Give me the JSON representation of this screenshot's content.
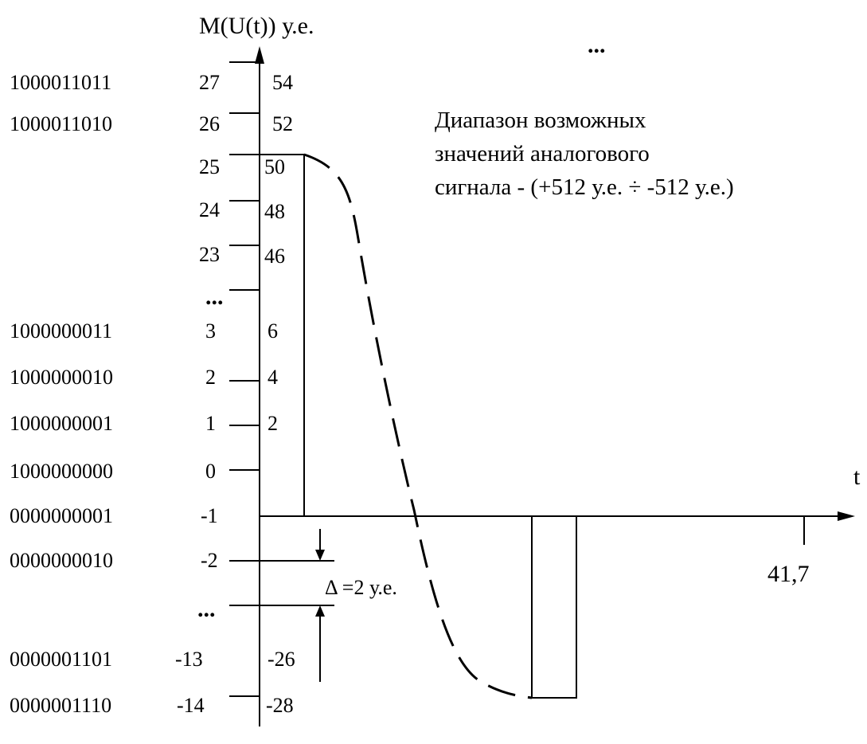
{
  "axis": {
    "y_label": "M(U(t)) у.е.",
    "x_label": "t",
    "x_tick": "41,7"
  },
  "levels": [
    {
      "code": "1000011011",
      "index": "27",
      "value": "54"
    },
    {
      "code": "1000011010",
      "index": "26",
      "value": "52"
    },
    {
      "code": "",
      "index": "25",
      "value": "50"
    },
    {
      "code": "",
      "index": "24",
      "value": "48"
    },
    {
      "code": "",
      "index": "23",
      "value": "46"
    },
    {
      "code": "1000000011",
      "index": "3",
      "value": "6"
    },
    {
      "code": "1000000010",
      "index": "2",
      "value": "4"
    },
    {
      "code": "1000000001",
      "index": "1",
      "value": "2"
    },
    {
      "code": "1000000000",
      "index": "0",
      "value": ""
    },
    {
      "code": "0000000001",
      "index": "-1",
      "value": ""
    },
    {
      "code": "0000000010",
      "index": "-2",
      "value": ""
    },
    {
      "code": "0000001101",
      "index": "-13",
      "value": "-26"
    },
    {
      "code": "0000001110",
      "index": "-14",
      "value": "-28"
    }
  ],
  "ellipsis": "...",
  "annotation": {
    "line1": "Диапазон возможных",
    "line2": "значений аналогового",
    "line3": "сигнала - (+512 у.е. ÷ -512 у.е.)"
  },
  "delta_label": "Δ =2 у.е."
}
